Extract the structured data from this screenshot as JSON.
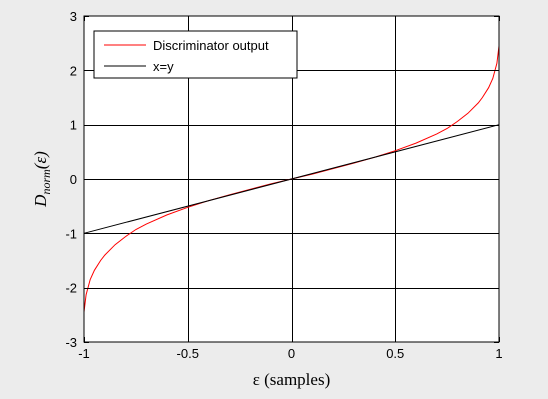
{
  "chart_data": {
    "type": "line",
    "xlabel": "ε (samples)",
    "ylabel_main": "D",
    "ylabel_sub": "norm",
    "ylabel_arg": "(ε)",
    "xlim": [
      -1,
      1
    ],
    "ylim": [
      -3,
      3
    ],
    "x_ticks": [
      -1,
      -0.5,
      0,
      0.5,
      1
    ],
    "x_tick_labels": [
      "-1",
      "-0.5",
      "0",
      "0.5",
      "1"
    ],
    "y_ticks": [
      -3,
      -2,
      -1,
      0,
      1,
      2,
      3
    ],
    "y_tick_labels": [
      "-3",
      "-2",
      "-1",
      "0",
      "1",
      "2",
      "3"
    ],
    "grid": true,
    "legend_position": "top-left",
    "series": [
      {
        "name": "Discriminator output",
        "color": "#ff0000",
        "x": [
          -1.0,
          -0.99,
          -0.97,
          -0.95,
          -0.92,
          -0.9,
          -0.85,
          -0.8,
          -0.75,
          -0.7,
          -0.6,
          -0.5,
          -0.4,
          -0.3,
          -0.2,
          -0.1,
          0.0,
          0.1,
          0.2,
          0.3,
          0.4,
          0.5,
          0.6,
          0.7,
          0.75,
          0.8,
          0.85,
          0.9,
          0.92,
          0.95,
          0.97,
          0.99,
          1.0
        ],
        "y": [
          -2.45,
          -2.13,
          -1.85,
          -1.68,
          -1.5,
          -1.4,
          -1.21,
          -1.06,
          -0.93,
          -0.83,
          -0.66,
          -0.52,
          -0.4,
          -0.29,
          -0.19,
          -0.09,
          0.0,
          0.09,
          0.19,
          0.29,
          0.4,
          0.52,
          0.66,
          0.83,
          0.93,
          1.06,
          1.21,
          1.4,
          1.5,
          1.68,
          1.85,
          2.13,
          2.45
        ]
      },
      {
        "name": "x=y",
        "color": "#000000",
        "x": [
          -1,
          1
        ],
        "y": [
          -1,
          1
        ]
      }
    ]
  }
}
